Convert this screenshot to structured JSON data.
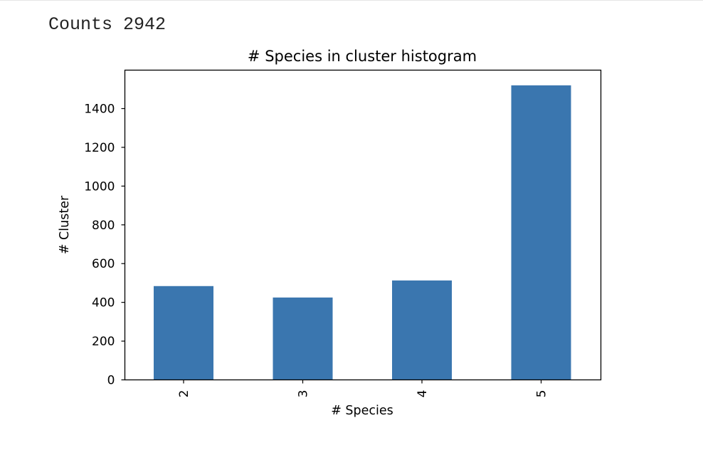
{
  "header": {
    "counts_label": "Counts",
    "counts_value": "2942"
  },
  "chart_data": {
    "type": "bar",
    "title": "# Species in cluster histogram",
    "xlabel": "# Species",
    "ylabel": "# Cluster",
    "categories": [
      "2",
      "3",
      "4",
      "5"
    ],
    "values": [
      484,
      425,
      513,
      1520
    ],
    "ylim": [
      0,
      1600
    ],
    "yticks": [
      0,
      200,
      400,
      600,
      800,
      1000,
      1200,
      1400
    ],
    "grid": false,
    "bar_color": "#3a76af"
  }
}
